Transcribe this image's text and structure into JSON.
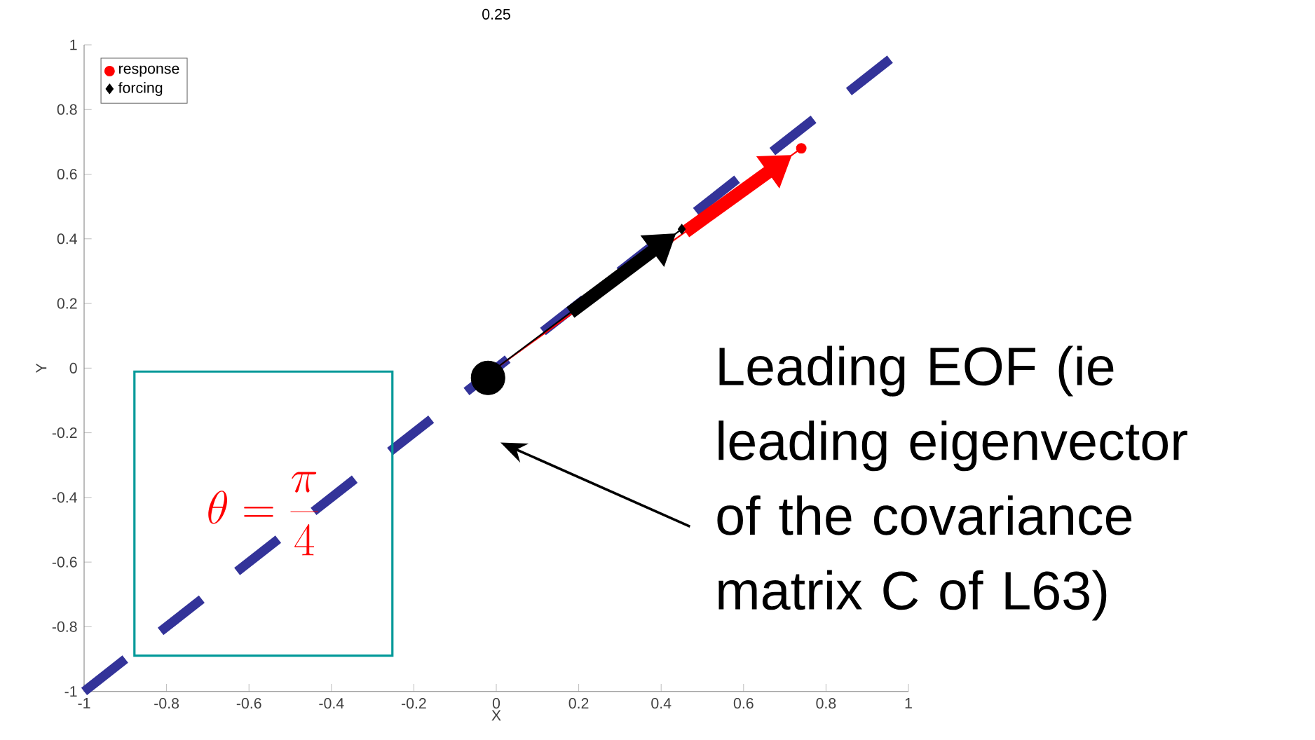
{
  "chart_data": {
    "type": "line",
    "title": "0.25",
    "xlabel": "X",
    "ylabel": "Y",
    "xlim": [
      -1,
      1
    ],
    "ylim": [
      -1,
      1
    ],
    "xticks": [
      -1,
      -0.8,
      -0.6,
      -0.4,
      -0.2,
      0,
      0.2,
      0.4,
      0.6,
      0.8,
      1
    ],
    "yticks": [
      -1,
      -0.8,
      -0.6,
      -0.4,
      -0.2,
      0,
      0.2,
      0.4,
      0.6,
      0.8,
      1
    ],
    "legend": "top left",
    "annotations": [
      "\\theta=\\frac{\\pi}{4}",
      "Leading EOF (ie leading eigenvector of the covariance matrix C of L63)"
    ],
    "series": [
      {
        "color": "#333399",
        "line_style": "dashed",
        "marker": "none",
        "x": [
          -1,
          0.96
        ],
        "values": [
          -1,
          0.96
        ]
      },
      {
        "name": "response",
        "color": "#ff0000",
        "marker": "circle",
        "x": [
          0,
          0.74
        ],
        "values": [
          0,
          0.68
        ]
      },
      {
        "name": "forcing",
        "color": "#000000",
        "marker": "diamond",
        "x": [
          0,
          0.45
        ],
        "values": [
          0,
          0.43
        ]
      },
      {
        "type": "scatter",
        "color": "#000000",
        "marker": "circle",
        "x": [
          -0.02
        ],
        "values": [
          -0.03
        ]
      }
    ]
  }
}
